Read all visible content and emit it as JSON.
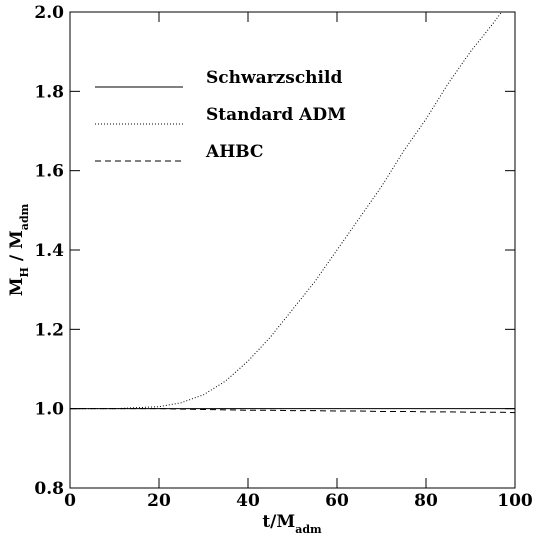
{
  "chart_data": {
    "type": "line",
    "xlabel": [
      "t/M",
      "adm"
    ],
    "ylabel": [
      "M",
      "H",
      " / M",
      "adm"
    ],
    "x": [
      0,
      10,
      20,
      25,
      30,
      35,
      40,
      45,
      50,
      55,
      60,
      65,
      70,
      75,
      80,
      85,
      90,
      95,
      97,
      100
    ],
    "series": [
      {
        "name": "Schwarzschild",
        "color": "#000000",
        "dash": "solid",
        "values": [
          1.0,
          1.0,
          1.0,
          1.0,
          1.0,
          1.0,
          1.0,
          1.0,
          1.0,
          1.0,
          1.0,
          1.0,
          1.0,
          1.0,
          1.0,
          1.0,
          1.0,
          1.0,
          1.0,
          1.0
        ]
      },
      {
        "name": "Standard ADM",
        "color": "#000000",
        "dash": "dotted",
        "values": [
          1.0,
          1.0,
          1.005,
          1.015,
          1.035,
          1.07,
          1.12,
          1.18,
          1.25,
          1.32,
          1.4,
          1.48,
          1.56,
          1.65,
          1.73,
          1.82,
          1.9,
          1.97,
          2.0,
          null
        ]
      },
      {
        "name": "AHBC",
        "color": "#000000",
        "dash": "dashed",
        "values": [
          1.0,
          1.0,
          1.0,
          0.999,
          0.998,
          0.997,
          0.996,
          0.996,
          0.995,
          0.995,
          0.994,
          0.994,
          0.993,
          0.993,
          0.992,
          0.992,
          0.991,
          0.991,
          0.991,
          0.99
        ]
      }
    ],
    "xlim": [
      0,
      100
    ],
    "xticks": [
      0,
      20,
      40,
      60,
      80,
      100
    ],
    "ylim": [
      0.8,
      2.0
    ],
    "yticks": [
      0.8,
      {
        "value": 1,
        "label": "1.0"
      },
      1.2,
      1.4,
      1.6,
      1.8,
      {
        "value": 2,
        "label": "2.0"
      }
    ]
  }
}
